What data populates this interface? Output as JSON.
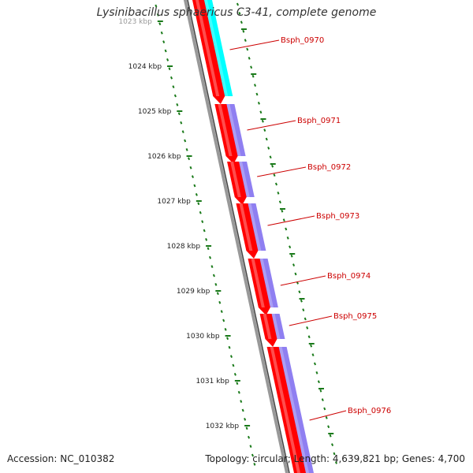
{
  "title": "Lysinibacillus sphaericus C3-41, complete genome",
  "footer": {
    "accession_label": "Accession:",
    "accession": "NC_010382",
    "topology_label": "Topology:",
    "topology": "circular",
    "length_label": "Length:",
    "length": "4,639,821 bp",
    "genes_label": "Genes:",
    "genes": "4,700"
  },
  "scale": {
    "unit": "kbp",
    "ticks": [
      "1023 kbp",
      "1024 kbp",
      "1025 kbp",
      "1026 kbp",
      "1027 kbp",
      "1028 kbp",
      "1029 kbp",
      "1030 kbp",
      "1031 kbp",
      "1032 kbp"
    ]
  },
  "genes": [
    {
      "id": "Bsph_0970",
      "strand": "forward",
      "color": "#00ffff"
    },
    {
      "id": "Bsph_0971",
      "strand": "forward",
      "color": "#7b68ee"
    },
    {
      "id": "Bsph_0972",
      "strand": "forward",
      "color": "#7b68ee"
    },
    {
      "id": "Bsph_0973",
      "strand": "forward",
      "color": "#7b68ee"
    },
    {
      "id": "Bsph_0974",
      "strand": "forward",
      "color": "#7b68ee"
    },
    {
      "id": "Bsph_0975",
      "strand": "forward",
      "color": "#7b68ee"
    },
    {
      "id": "Bsph_0976",
      "strand": "forward",
      "color": "#7b68ee"
    }
  ],
  "colors": {
    "cds_arrow": "#ff0000",
    "backbone": "#888888",
    "tick_marks": "#1a7a1a",
    "label_text": "#cc0000",
    "label_line": "#cc0000"
  }
}
